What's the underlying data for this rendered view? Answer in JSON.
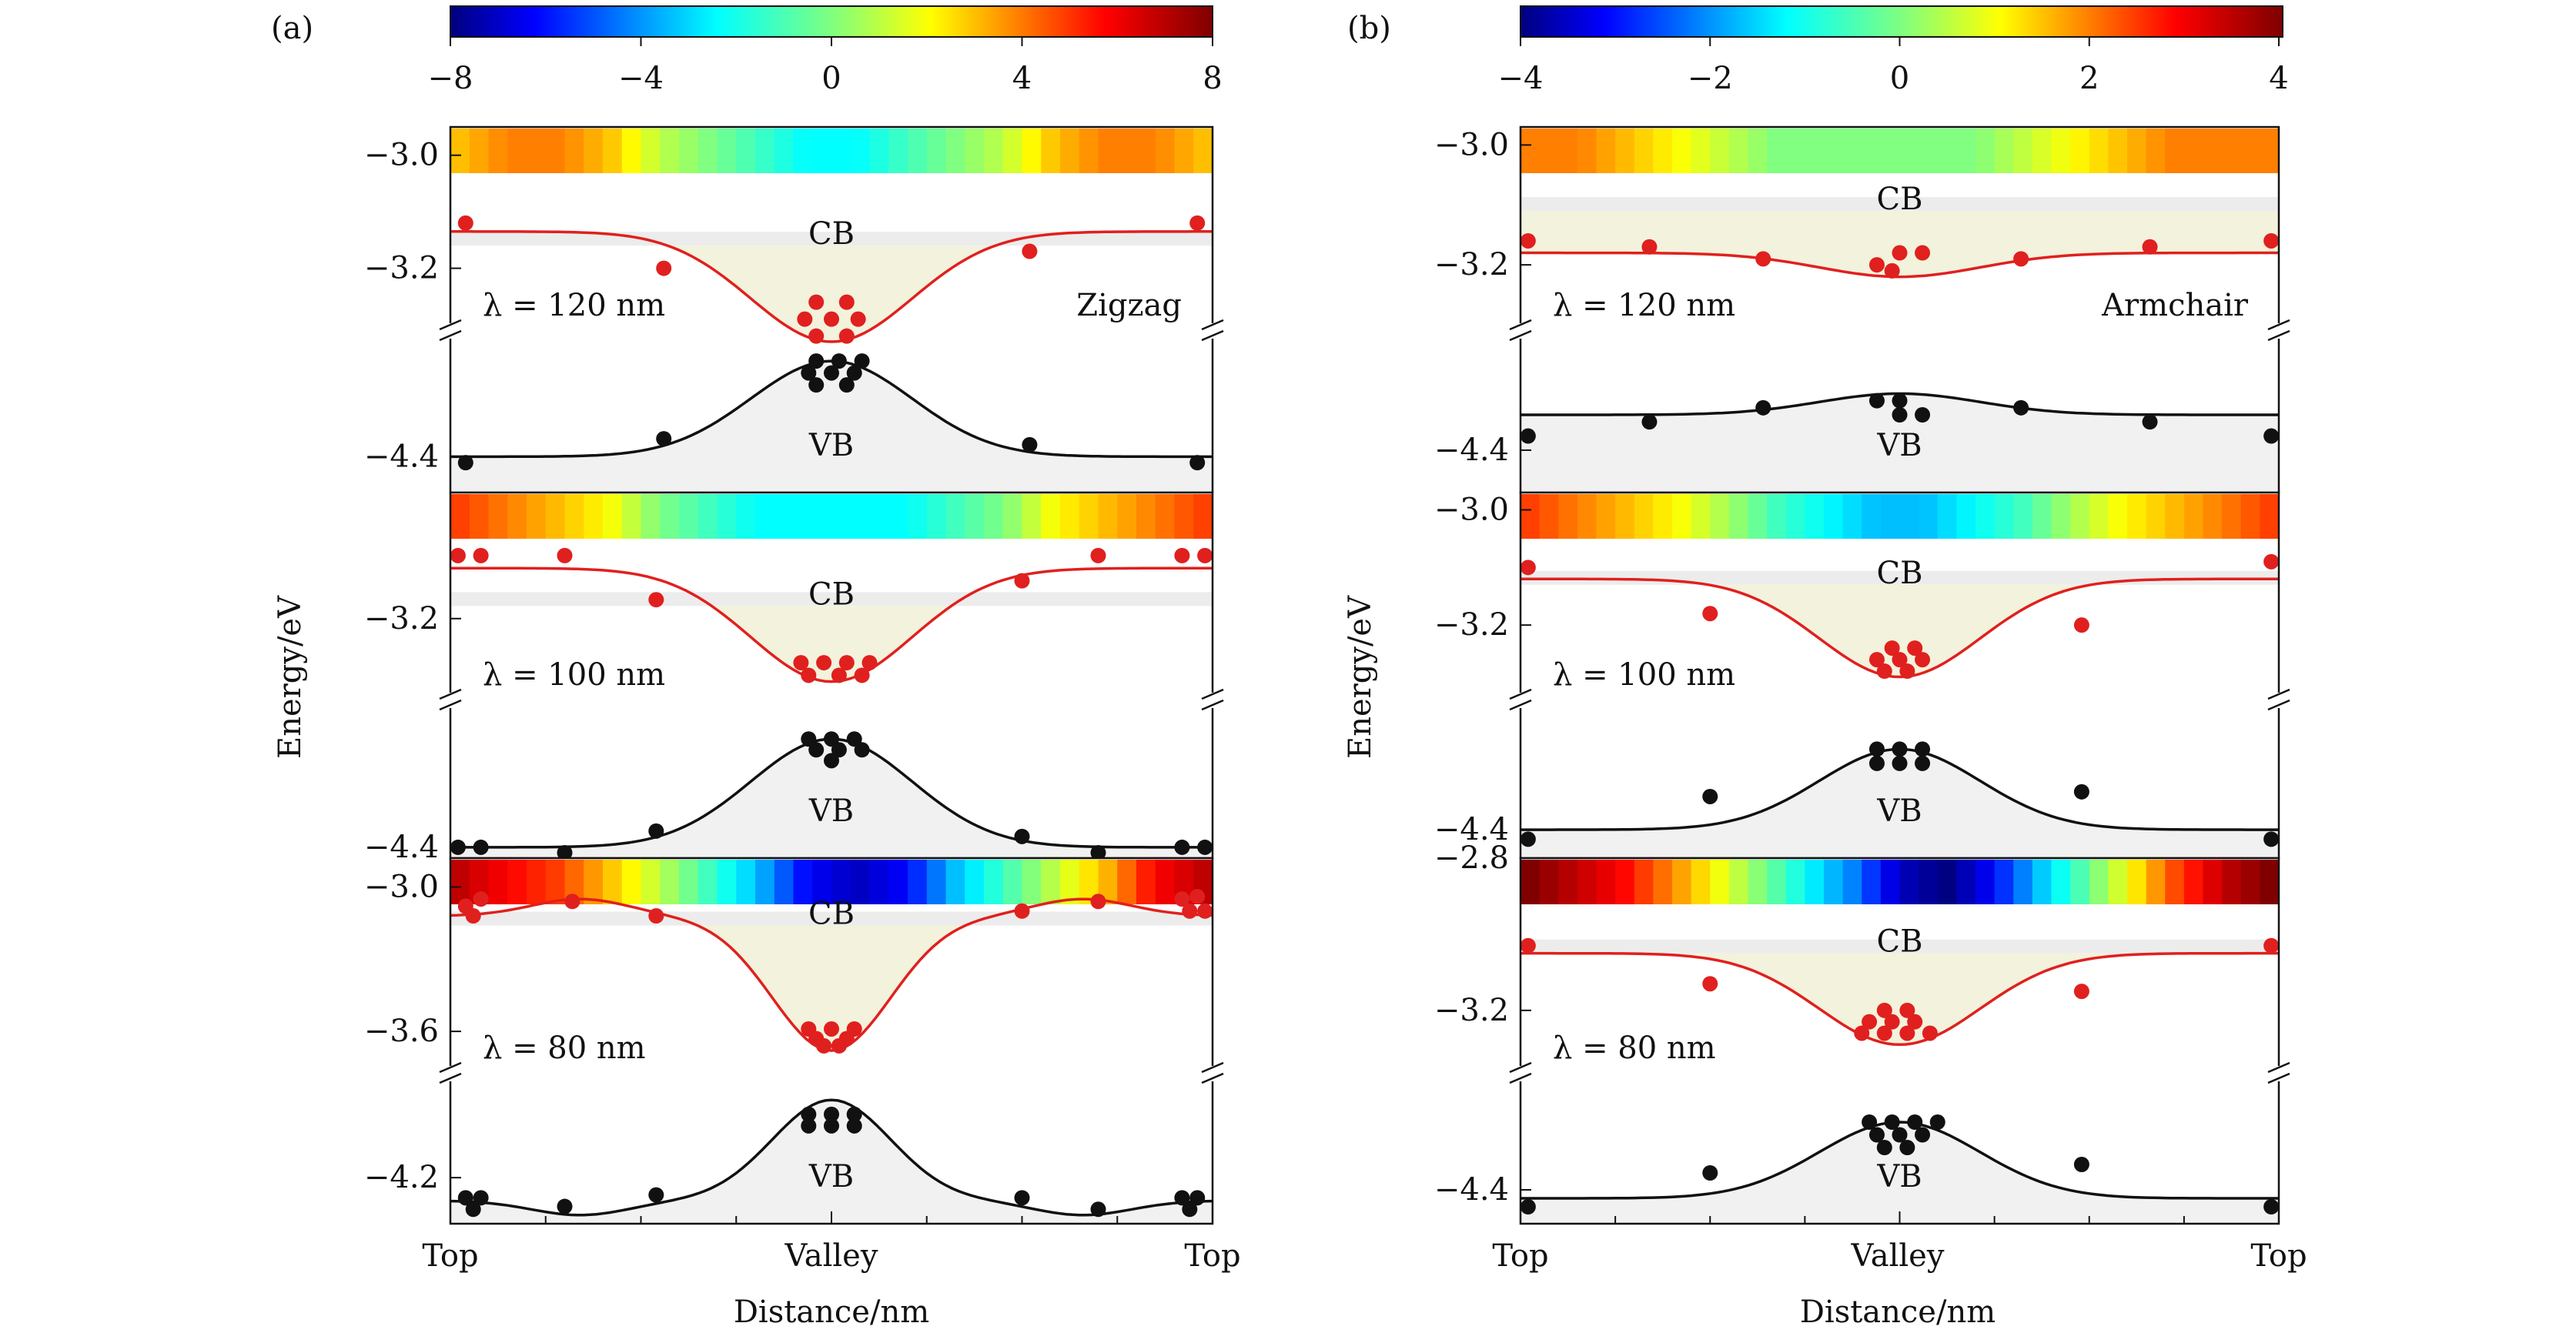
{
  "figure": {
    "panel_labels": [
      "(a)",
      "(b)"
    ],
    "xlabel": "Distance/nm",
    "ylabel": "Energy/eV",
    "x_ticks": [
      "Top",
      "Valley",
      "Top"
    ],
    "band_labels": {
      "cb": "CB",
      "vb": "VB"
    },
    "colors": {
      "cb_curve": "#e0201e",
      "vb_curve": "#111111",
      "cb_fill": "#f3f2dc",
      "vb_fill": "#f1f1f1",
      "frame": "#111111"
    }
  },
  "chart_data": [
    {
      "type": "line",
      "title": "(a) Zigzag",
      "colorbar": {
        "ticks": [
          "−8",
          "−4",
          "0",
          "4",
          "8"
        ],
        "range": [
          -8,
          8
        ]
      },
      "xlabel": "Distance/nm",
      "ylabel": "Energy/eV",
      "x_ticks": [
        "Top",
        "Valley",
        "Top"
      ],
      "direction": "Zigzag",
      "subplots": [
        {
          "lambda_label": "λ = 120 nm",
          "cb_ticks": [
            {
              "label": "−3.0",
              "value": -3.0
            },
            {
              "label": "−3.2",
              "value": -3.2
            }
          ],
          "vb_ticks": [
            {
              "label": "−4.4",
              "value": -4.4
            }
          ],
          "cb_ylim": [
            -3.3,
            -2.95
          ],
          "vb_ylim": [
            -4.46,
            -4.2
          ],
          "cb_curve": {
            "top": -3.135,
            "valley": -3.33,
            "shape": "single"
          },
          "vb_curve": {
            "top": -4.4,
            "valley": -4.24,
            "shape": "single"
          },
          "cb_points": [
            [
              0.02,
              -3.12
            ],
            [
              0.28,
              -3.2
            ],
            [
              0.76,
              -3.17
            ],
            [
              0.98,
              -3.12
            ],
            [
              0.48,
              -3.26
            ],
            [
              0.52,
              -3.26
            ],
            [
              0.465,
              -3.29
            ],
            [
              0.5,
              -3.29
            ],
            [
              0.535,
              -3.29
            ],
            [
              0.48,
              -3.32
            ],
            [
              0.52,
              -3.32
            ]
          ],
          "vb_points": [
            [
              0.02,
              -4.41
            ],
            [
              0.28,
              -4.37
            ],
            [
              0.76,
              -4.38
            ],
            [
              0.98,
              -4.41
            ],
            [
              0.48,
              -4.24
            ],
            [
              0.51,
              -4.24
            ],
            [
              0.54,
              -4.24
            ],
            [
              0.47,
              -4.26
            ],
            [
              0.5,
              -4.26
            ],
            [
              0.53,
              -4.26
            ],
            [
              0.48,
              -4.28
            ],
            [
              0.52,
              -4.28
            ]
          ],
          "colorbar_stops": [
            3,
            4,
            4,
            3,
            1,
            0,
            -1,
            -2,
            -2,
            -1,
            0,
            1,
            3,
            4,
            4,
            3
          ],
          "cb_shade_top": -3.16
        },
        {
          "lambda_label": "λ = 100 nm",
          "cb_ticks": [
            {
              "label": "−3.2",
              "value": -3.2
            }
          ],
          "vb_ticks": [
            {
              "label": "−4.4",
              "value": -4.4
            }
          ],
          "cb_ylim": [
            -3.32,
            -3.0
          ],
          "vb_ylim": [
            -4.42,
            -4.14
          ],
          "cb_curve": {
            "top": -3.12,
            "valley": -3.3,
            "shape": "single"
          },
          "vb_curve": {
            "top": -4.4,
            "valley": -4.2,
            "shape": "single"
          },
          "cb_points": [
            [
              0.01,
              -3.1
            ],
            [
              0.04,
              -3.1
            ],
            [
              0.15,
              -3.1
            ],
            [
              0.27,
              -3.17
            ],
            [
              0.75,
              -3.14
            ],
            [
              0.85,
              -3.1
            ],
            [
              0.96,
              -3.1
            ],
            [
              0.99,
              -3.1
            ],
            [
              0.46,
              -3.27
            ],
            [
              0.49,
              -3.27
            ],
            [
              0.52,
              -3.27
            ],
            [
              0.55,
              -3.27
            ],
            [
              0.47,
              -3.29
            ],
            [
              0.51,
              -3.29
            ],
            [
              0.54,
              -3.29
            ]
          ],
          "vb_points": [
            [
              0.01,
              -4.4
            ],
            [
              0.04,
              -4.4
            ],
            [
              0.15,
              -4.41
            ],
            [
              0.27,
              -4.37
            ],
            [
              0.75,
              -4.38
            ],
            [
              0.85,
              -4.41
            ],
            [
              0.96,
              -4.4
            ],
            [
              0.99,
              -4.4
            ],
            [
              0.47,
              -4.2
            ],
            [
              0.5,
              -4.2
            ],
            [
              0.53,
              -4.2
            ],
            [
              0.48,
              -4.22
            ],
            [
              0.51,
              -4.22
            ],
            [
              0.54,
              -4.22
            ],
            [
              0.5,
              -4.24
            ]
          ],
          "colorbar_stops": [
            5,
            4,
            3,
            2,
            0,
            -1,
            -2,
            -2,
            -2,
            -2,
            -1,
            0,
            2,
            3,
            4,
            5
          ],
          "cb_shade_top": -3.18
        },
        {
          "lambda_label": "λ = 80 nm",
          "cb_ticks": [
            {
              "label": "−3.0",
              "value": -3.0
            },
            {
              "label": "−3.6",
              "value": -3.6
            }
          ],
          "vb_ticks": [
            {
              "label": "−4.2",
              "value": -4.2
            }
          ],
          "cb_ylim": [
            -3.75,
            -2.88
          ],
          "vb_ylim": [
            -4.36,
            -3.86
          ],
          "cb_curve": {
            "top": -3.12,
            "valley": -3.68,
            "bump": -3.05,
            "shape": "double"
          },
          "vb_curve": {
            "top": -4.28,
            "valley": -3.93,
            "bump": -4.33,
            "shape": "double"
          },
          "cb_points": [
            [
              0.02,
              -3.08
            ],
            [
              0.04,
              -3.05
            ],
            [
              0.03,
              -3.12
            ],
            [
              0.16,
              -3.06
            ],
            [
              0.27,
              -3.12
            ],
            [
              0.75,
              -3.1
            ],
            [
              0.85,
              -3.06
            ],
            [
              0.96,
              -3.05
            ],
            [
              0.97,
              -3.1
            ],
            [
              0.99,
              -3.1
            ],
            [
              0.98,
              -3.04
            ],
            [
              0.47,
              -3.59
            ],
            [
              0.5,
              -3.59
            ],
            [
              0.53,
              -3.59
            ],
            [
              0.48,
              -3.63
            ],
            [
              0.52,
              -3.63
            ],
            [
              0.49,
              -3.66
            ],
            [
              0.51,
              -3.66
            ]
          ],
          "vb_points": [
            [
              0.02,
              -4.27
            ],
            [
              0.04,
              -4.27
            ],
            [
              0.03,
              -4.31
            ],
            [
              0.15,
              -4.3
            ],
            [
              0.27,
              -4.26
            ],
            [
              0.75,
              -4.27
            ],
            [
              0.85,
              -4.31
            ],
            [
              0.96,
              -4.27
            ],
            [
              0.98,
              -4.27
            ],
            [
              0.97,
              -4.31
            ],
            [
              0.47,
              -3.98
            ],
            [
              0.5,
              -3.98
            ],
            [
              0.53,
              -3.98
            ],
            [
              0.47,
              -4.02
            ],
            [
              0.5,
              -4.02
            ],
            [
              0.53,
              -4.02
            ]
          ],
          "colorbar_stops": [
            7,
            6,
            5,
            3,
            1,
            -1,
            -3,
            -6,
            -7,
            -6,
            -3,
            -1,
            1,
            3,
            6,
            7
          ],
          "cb_shade_top": -3.16
        }
      ]
    },
    {
      "type": "line",
      "title": "(b) Armchair",
      "colorbar": {
        "ticks": [
          "−4",
          "−2",
          "0",
          "2",
          "4"
        ],
        "range": [
          -4,
          4
        ]
      },
      "xlabel": "Distance/nm",
      "ylabel": "Energy/eV",
      "x_ticks": [
        "Top",
        "Valley",
        "Top"
      ],
      "direction": "Armchair",
      "subplots": [
        {
          "lambda_label": "λ = 120 nm",
          "cb_ticks": [
            {
              "label": "−3.0",
              "value": -3.0
            },
            {
              "label": "−3.2",
              "value": -3.2
            }
          ],
          "vb_ticks": [
            {
              "label": "−4.4",
              "value": -4.4
            }
          ],
          "cb_ylim": [
            -3.3,
            -2.97
          ],
          "vb_ylim": [
            -4.46,
            -4.24
          ],
          "cb_curve": {
            "top": -3.18,
            "valley": -3.22,
            "shape": "single"
          },
          "vb_curve": {
            "top": -4.35,
            "valley": -4.32,
            "shape": "single"
          },
          "cb_points": [
            [
              0.01,
              -3.16
            ],
            [
              0.17,
              -3.17
            ],
            [
              0.32,
              -3.19
            ],
            [
              0.47,
              -3.2
            ],
            [
              0.5,
              -3.18
            ],
            [
              0.53,
              -3.18
            ],
            [
              0.49,
              -3.21
            ],
            [
              0.66,
              -3.19
            ],
            [
              0.83,
              -3.17
            ],
            [
              0.99,
              -3.16
            ]
          ],
          "vb_points": [
            [
              0.01,
              -4.38
            ],
            [
              0.17,
              -4.36
            ],
            [
              0.32,
              -4.34
            ],
            [
              0.47,
              -4.33
            ],
            [
              0.5,
              -4.33
            ],
            [
              0.53,
              -4.35
            ],
            [
              0.5,
              -4.35
            ],
            [
              0.66,
              -4.34
            ],
            [
              0.83,
              -4.36
            ],
            [
              0.99,
              -4.38
            ]
          ],
          "colorbar_stops": [
            2,
            2,
            1.5,
            1,
            0.5,
            0,
            0,
            0,
            0,
            0,
            0.5,
            1,
            1.5,
            2,
            2,
            2
          ],
          "cb_shade_top": -3.11
        },
        {
          "lambda_label": "λ = 100 nm",
          "cb_ticks": [
            {
              "label": "−3.0",
              "value": -3.0
            },
            {
              "label": "−3.2",
              "value": -3.2
            }
          ],
          "vb_ticks": [
            {
              "label": "−4.4",
              "value": -4.4
            }
          ],
          "cb_ylim": [
            -3.32,
            -2.97
          ],
          "vb_ylim": [
            -4.46,
            -4.14
          ],
          "cb_curve": {
            "top": -3.12,
            "valley": -3.29,
            "shape": "single"
          },
          "vb_curve": {
            "top": -4.4,
            "valley": -4.23,
            "shape": "single"
          },
          "cb_points": [
            [
              0.01,
              -3.1
            ],
            [
              0.25,
              -3.18
            ],
            [
              0.74,
              -3.2
            ],
            [
              0.99,
              -3.09
            ],
            [
              0.49,
              -3.24
            ],
            [
              0.52,
              -3.24
            ],
            [
              0.47,
              -3.26
            ],
            [
              0.5,
              -3.26
            ],
            [
              0.53,
              -3.26
            ],
            [
              0.48,
              -3.28
            ],
            [
              0.51,
              -3.28
            ]
          ],
          "vb_points": [
            [
              0.01,
              -4.42
            ],
            [
              0.25,
              -4.33
            ],
            [
              0.74,
              -4.32
            ],
            [
              0.99,
              -4.42
            ],
            [
              0.47,
              -4.23
            ],
            [
              0.5,
              -4.23
            ],
            [
              0.53,
              -4.23
            ],
            [
              0.47,
              -4.26
            ],
            [
              0.5,
              -4.26
            ],
            [
              0.53,
              -4.26
            ]
          ],
          "colorbar_stops": [
            2.5,
            2,
            1.5,
            1,
            0.3,
            -0.5,
            -1,
            -1.5,
            -1.5,
            -1,
            -0.5,
            0.3,
            1,
            1.5,
            2,
            2.5
          ],
          "cb_shade_top": -3.13
        },
        {
          "lambda_label": "λ = 80 nm",
          "cb_ticks": [
            {
              "label": "−2.8",
              "value": -2.8
            },
            {
              "label": "−3.2",
              "value": -3.2
            }
          ],
          "vb_ticks": [
            {
              "label": "−4.4",
              "value": -4.4
            }
          ],
          "cb_ylim": [
            -3.35,
            -2.8
          ],
          "vb_ylim": [
            -4.48,
            -4.14
          ],
          "cb_curve": {
            "top": -3.05,
            "valley": -3.29,
            "shape": "single"
          },
          "vb_curve": {
            "top": -4.42,
            "valley": -4.24,
            "shape": "single"
          },
          "cb_points": [
            [
              0.01,
              -3.03
            ],
            [
              0.25,
              -3.13
            ],
            [
              0.74,
              -3.15
            ],
            [
              0.99,
              -3.03
            ],
            [
              0.48,
              -3.2
            ],
            [
              0.51,
              -3.2
            ],
            [
              0.46,
              -3.23
            ],
            [
              0.49,
              -3.23
            ],
            [
              0.52,
              -3.23
            ],
            [
              0.45,
              -3.26
            ],
            [
              0.48,
              -3.26
            ],
            [
              0.51,
              -3.26
            ],
            [
              0.54,
              -3.26
            ]
          ],
          "vb_points": [
            [
              0.01,
              -4.44
            ],
            [
              0.25,
              -4.36
            ],
            [
              0.74,
              -4.34
            ],
            [
              0.99,
              -4.44
            ],
            [
              0.46,
              -4.24
            ],
            [
              0.49,
              -4.24
            ],
            [
              0.52,
              -4.24
            ],
            [
              0.55,
              -4.24
            ],
            [
              0.47,
              -4.27
            ],
            [
              0.5,
              -4.27
            ],
            [
              0.53,
              -4.27
            ],
            [
              0.48,
              -4.3
            ],
            [
              0.51,
              -4.3
            ]
          ],
          "colorbar_stops": [
            4,
            3.5,
            3,
            2,
            1,
            0,
            -1,
            -2,
            -3.5,
            -4,
            -3,
            -1.5,
            -0.3,
            1,
            2.5,
            3.5,
            4
          ],
          "cb_shade_top": -3.05
        }
      ]
    }
  ]
}
